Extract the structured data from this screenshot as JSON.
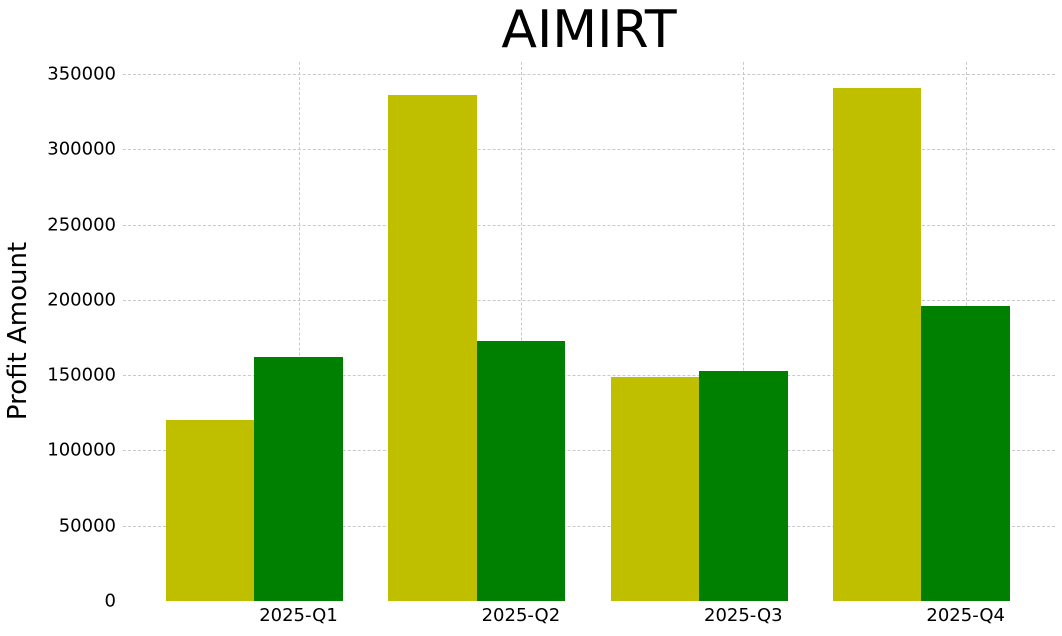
{
  "chart_data": {
    "type": "bar",
    "title": "AIMIRT",
    "xlabel": "",
    "ylabel": "Profit Amount",
    "categories": [
      "2025-Q1",
      "2025-Q2",
      "2025-Q3",
      "2025-Q4"
    ],
    "series": [
      {
        "name": "yellow-series",
        "color": "#bfbf00",
        "values": [
          120000,
          336000,
          149000,
          341000
        ]
      },
      {
        "name": "green-series",
        "color": "#008000",
        "values": [
          162000,
          173000,
          153000,
          196000
        ]
      }
    ],
    "yticks": [
      0,
      50000,
      100000,
      150000,
      200000,
      250000,
      300000,
      350000
    ],
    "ylim": [
      0,
      358000
    ],
    "grid": "dashed-both-axes",
    "gridline_color": "#c9c9c9",
    "legend": "none",
    "background_color": "#ffffff",
    "text_color": "#000000"
  }
}
